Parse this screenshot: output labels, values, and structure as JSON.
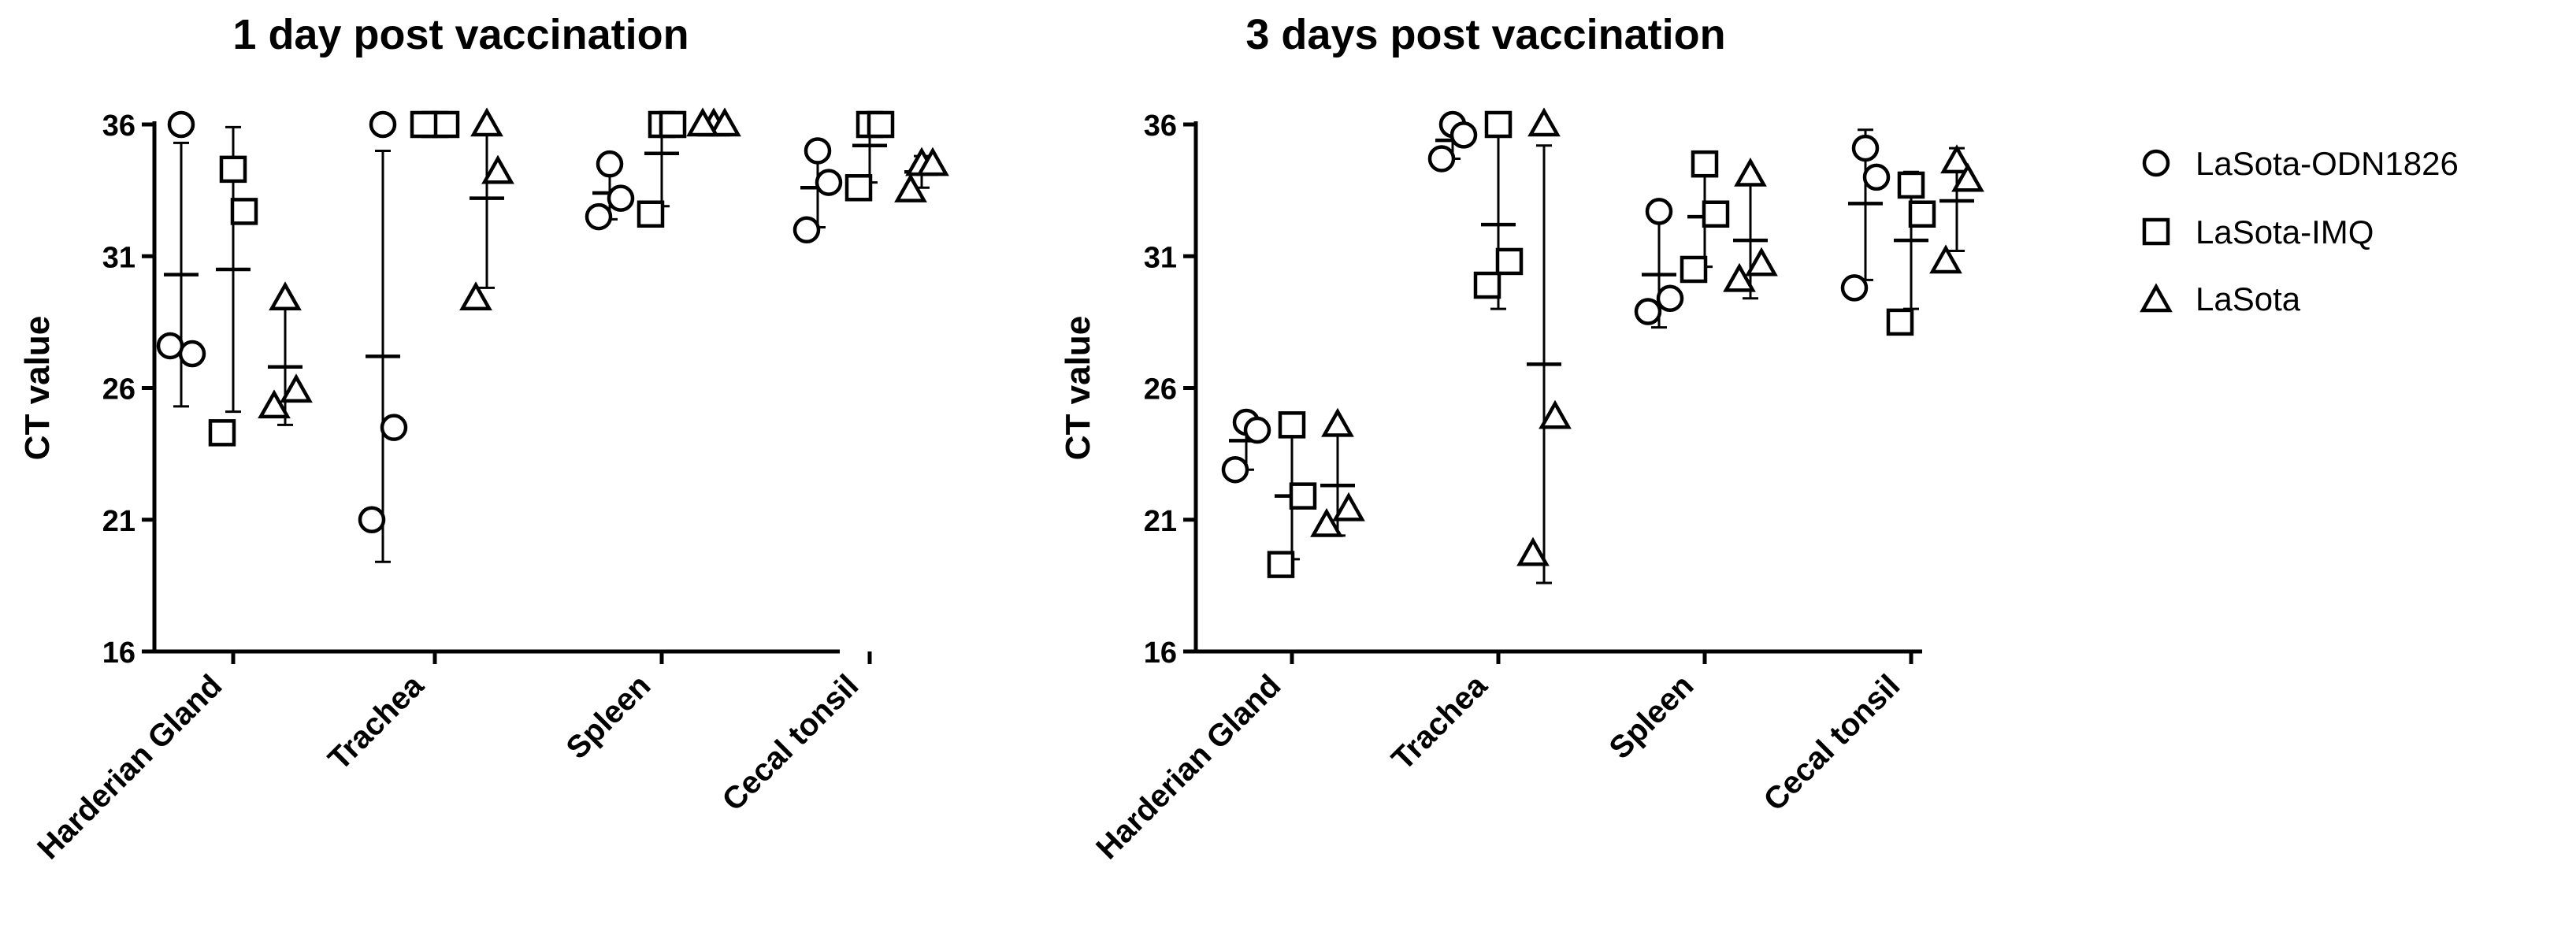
{
  "legend": [
    {
      "name": "LaSota-ODN1826",
      "marker": "circle"
    },
    {
      "name": "LaSota-IMQ",
      "marker": "square"
    },
    {
      "name": "LaSota",
      "marker": "triangle"
    }
  ],
  "chart_data": [
    {
      "type": "scatter",
      "title": "1 day post vaccination",
      "xlabel": "",
      "ylabel": "CT value",
      "ylim": [
        16,
        36
      ],
      "yticks": [
        16,
        21,
        26,
        31,
        36
      ],
      "categories": [
        "Harderian Gland",
        "Trachea",
        "Spleen",
        "Cecal tonsil"
      ],
      "series": [
        {
          "name": "LaSota-ODN1826",
          "groups": [
            {
              "values": [
                36.0,
                27.3,
                27.6
              ],
              "mean": 30.3,
              "low": 25.3,
              "high": 35.3
            },
            {
              "values": [
                36.0,
                24.5,
                21.0
              ],
              "mean": 27.2,
              "low": 19.4,
              "high": 35.0
            },
            {
              "values": [
                34.5,
                33.2,
                32.5
              ],
              "mean": 33.4,
              "low": 32.4,
              "high": 34.4
            },
            {
              "values": [
                35.0,
                33.8,
                32.0
              ],
              "mean": 33.6,
              "low": 32.1,
              "high": 35.1
            }
          ]
        },
        {
          "name": "LaSota-IMQ",
          "groups": [
            {
              "values": [
                34.3,
                32.7,
                24.3
              ],
              "mean": 30.5,
              "low": 25.1,
              "high": 35.9
            },
            {
              "values": [
                36.0,
                36.0,
                36.0
              ],
              "mean": 36.0,
              "low": 36.0,
              "high": 36.0
            },
            {
              "values": [
                36.0,
                36.0,
                32.6
              ],
              "mean": 34.9,
              "low": 32.9,
              "high": 36.0
            },
            {
              "values": [
                36.0,
                36.0,
                33.6
              ],
              "mean": 35.2,
              "low": 33.8,
              "high": 36.0
            }
          ]
        },
        {
          "name": "LaSota",
          "groups": [
            {
              "values": [
                29.4,
                25.9,
                25.3
              ],
              "mean": 26.8,
              "low": 24.6,
              "high": 29.0
            },
            {
              "values": [
                36.0,
                34.2,
                29.4
              ],
              "mean": 33.2,
              "low": 29.8,
              "high": 36.0
            },
            {
              "values": [
                36.0,
                36.0,
                36.0
              ],
              "mean": 36.0,
              "low": 36.0,
              "high": 36.0
            },
            {
              "values": [
                34.5,
                34.5,
                33.5
              ],
              "mean": 34.2,
              "low": 33.6,
              "high": 34.8
            }
          ]
        }
      ]
    },
    {
      "type": "scatter",
      "title": "3 days post vaccination",
      "xlabel": "",
      "ylabel": "CT value",
      "ylim": [
        16,
        36
      ],
      "yticks": [
        16,
        21,
        26,
        31,
        36
      ],
      "categories": [
        "Harderian Gland",
        "Trachea",
        "Spleen",
        "Cecal tonsil"
      ],
      "series": [
        {
          "name": "LaSota-ODN1826",
          "groups": [
            {
              "values": [
                24.7,
                24.4,
                22.9
              ],
              "mean": 24.0,
              "low": 22.9,
              "high": 25.0
            },
            {
              "values": [
                36.0,
                35.6,
                34.7
              ],
              "mean": 35.4,
              "low": 34.7,
              "high": 36.0
            },
            {
              "values": [
                32.7,
                29.4,
                28.9
              ],
              "mean": 30.3,
              "low": 28.3,
              "high": 32.6
            },
            {
              "values": [
                35.1,
                34.0,
                29.8
              ],
              "mean": 33.0,
              "low": 30.1,
              "high": 35.8
            }
          ]
        },
        {
          "name": "LaSota-IMQ",
          "groups": [
            {
              "values": [
                24.6,
                21.9,
                19.3
              ],
              "mean": 21.9,
              "low": 19.5,
              "high": 24.5
            },
            {
              "values": [
                36.0,
                30.8,
                29.9
              ],
              "mean": 32.2,
              "low": 29.0,
              "high": 35.6
            },
            {
              "values": [
                34.5,
                32.6,
                30.5
              ],
              "mean": 32.5,
              "low": 30.6,
              "high": 34.4
            },
            {
              "values": [
                33.7,
                32.6,
                28.5
              ],
              "mean": 31.6,
              "low": 29.0,
              "high": 34.2
            }
          ]
        },
        {
          "name": "LaSota",
          "groups": [
            {
              "values": [
                24.6,
                21.4,
                20.8
              ],
              "mean": 22.3,
              "low": 20.4,
              "high": 24.2
            },
            {
              "values": [
                36.0,
                24.9,
                19.7
              ],
              "mean": 26.9,
              "low": 18.6,
              "high": 35.2
            },
            {
              "values": [
                34.1,
                30.7,
                30.1
              ],
              "mean": 31.6,
              "low": 29.4,
              "high": 33.8
            },
            {
              "values": [
                34.6,
                33.9,
                30.8
              ],
              "mean": 33.1,
              "low": 31.2,
              "high": 35.1
            }
          ]
        }
      ]
    }
  ]
}
